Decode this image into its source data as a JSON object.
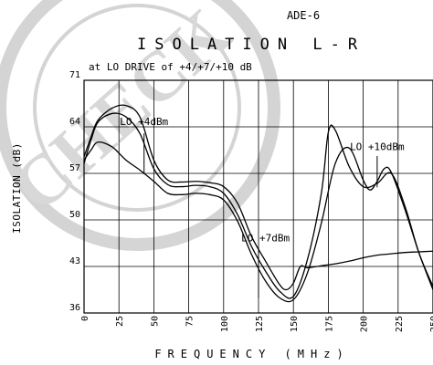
{
  "chart_data": {
    "type": "line",
    "model": "ADE-6",
    "title": "ISOLATION L-R",
    "subtitle": "at LO DRIVE of +4/+7/+10 dB",
    "xlabel": "FREQUENCY (MHz)",
    "ylabel": "ISOLATION (dB)",
    "watermark": "CHECK",
    "xlim": [
      0,
      250
    ],
    "ylim": [
      36,
      71
    ],
    "x_ticks": [
      "0",
      "25",
      "50",
      "75",
      "100",
      "125",
      "150",
      "175",
      "200",
      "225",
      "250"
    ],
    "y_ticks": [
      "36",
      "43",
      "50",
      "57",
      "64",
      "71"
    ],
    "grid": true,
    "annotations": [
      {
        "label": "LO +4dBm",
        "x": 43,
        "y": 64.3
      },
      {
        "label": "LO +7dBm",
        "x": 130,
        "y": 46.8
      },
      {
        "label": "LO +10dBm",
        "x": 210,
        "y": 60.5
      }
    ],
    "series": [
      {
        "label": "LO +4dBm",
        "x": [
          0,
          5,
          10,
          20,
          30,
          40,
          50,
          60,
          70,
          80,
          90,
          100,
          110,
          120,
          130,
          140,
          145,
          150,
          155,
          160,
          170,
          180,
          190,
          200,
          210,
          220,
          230,
          240,
          250
        ],
        "y": [
          59.5,
          62.5,
          65.0,
          66.8,
          67.2,
          65.5,
          59.0,
          56.0,
          55.7,
          55.8,
          55.6,
          55.0,
          52.5,
          47.5,
          43.8,
          40.3,
          39.5,
          40.5,
          43.0,
          42.8,
          43.1,
          43.4,
          43.8,
          44.3,
          44.7,
          44.9,
          45.1,
          45.2,
          45.3
        ]
      },
      {
        "label": "LO +7dBm",
        "x": [
          0,
          5,
          10,
          20,
          30,
          40,
          50,
          60,
          70,
          80,
          90,
          100,
          110,
          120,
          130,
          140,
          150,
          160,
          170,
          175,
          180,
          190,
          200,
          210,
          220,
          230,
          240,
          250
        ],
        "y": [
          58.5,
          62.0,
          64.7,
          66.0,
          65.5,
          63.0,
          57.7,
          55.3,
          55.0,
          55.2,
          55.0,
          54.0,
          50.8,
          46.0,
          42.3,
          39.3,
          38.5,
          44.0,
          54.0,
          63.2,
          63.5,
          58.0,
          55.0,
          55.5,
          57.0,
          52.0,
          45.0,
          40.0
        ]
      },
      {
        "label": "LO +10dBm",
        "x": [
          0,
          5,
          10,
          20,
          30,
          40,
          50,
          60,
          70,
          80,
          90,
          100,
          110,
          120,
          130,
          140,
          150,
          160,
          170,
          180,
          190,
          200,
          205,
          210,
          215,
          220,
          230,
          240,
          250
        ],
        "y": [
          59.0,
          60.5,
          61.7,
          61.0,
          59.0,
          57.5,
          55.8,
          54.0,
          53.8,
          54.0,
          53.8,
          53.0,
          49.8,
          44.8,
          40.8,
          38.3,
          38.0,
          42.0,
          49.5,
          58.5,
          60.8,
          56.0,
          54.5,
          55.8,
          57.7,
          57.2,
          51.5,
          45.0,
          39.5
        ]
      }
    ]
  }
}
